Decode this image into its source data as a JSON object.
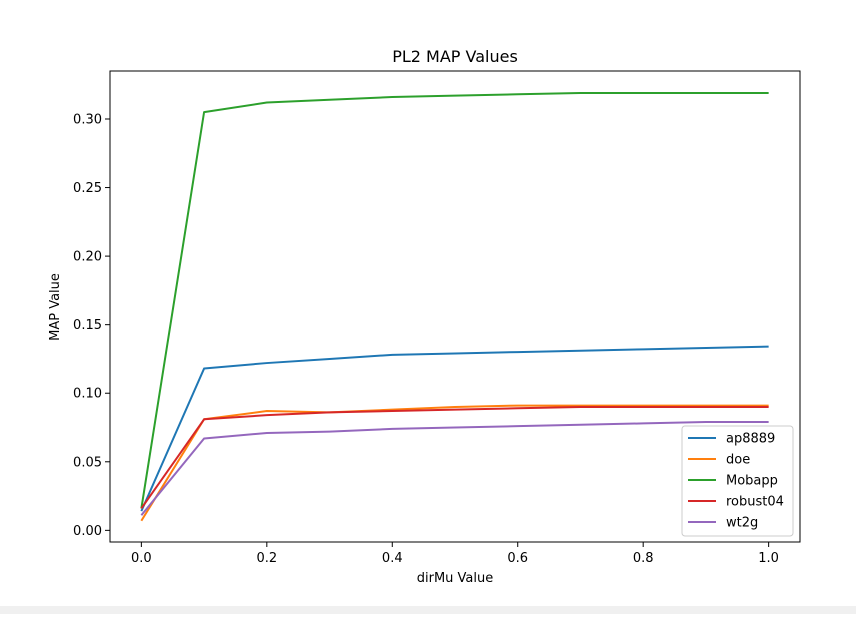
{
  "chart_data": {
    "type": "line",
    "title": "PL2 MAP Values",
    "xlabel": "dirMu Value",
    "ylabel": "MAP Value",
    "x": [
      0.0,
      0.1,
      0.2,
      0.3,
      0.4,
      0.5,
      0.6,
      0.7,
      0.8,
      0.9,
      1.0
    ],
    "xlim": [
      -0.05,
      1.05
    ],
    "ylim": [
      -0.0085,
      0.335
    ],
    "xticks": [
      0.0,
      0.2,
      0.4,
      0.6,
      0.8,
      1.0
    ],
    "xtick_labels": [
      "0.0",
      "0.2",
      "0.4",
      "0.6",
      "0.8",
      "1.0"
    ],
    "yticks": [
      0.0,
      0.05,
      0.1,
      0.15,
      0.2,
      0.25,
      0.3
    ],
    "ytick_labels": [
      "0.00",
      "0.05",
      "0.10",
      "0.15",
      "0.20",
      "0.25",
      "0.30"
    ],
    "grid": false,
    "legend_position": "lower-right",
    "series": [
      {
        "name": "ap8889",
        "color": "#1f77b4",
        "values": [
          0.014,
          0.118,
          0.122,
          0.125,
          0.128,
          0.129,
          0.13,
          0.131,
          0.132,
          0.133,
          0.134
        ]
      },
      {
        "name": "doe",
        "color": "#ff7f0e",
        "values": [
          0.007,
          0.081,
          0.087,
          0.086,
          0.088,
          0.09,
          0.091,
          0.091,
          0.091,
          0.091,
          0.091
        ]
      },
      {
        "name": "Mobapp",
        "color": "#2ca02c",
        "values": [
          0.016,
          0.305,
          0.312,
          0.314,
          0.316,
          0.317,
          0.318,
          0.319,
          0.319,
          0.319,
          0.319
        ]
      },
      {
        "name": "robust04",
        "color": "#d62728",
        "values": [
          0.016,
          0.081,
          0.084,
          0.086,
          0.087,
          0.088,
          0.089,
          0.09,
          0.09,
          0.09,
          0.09
        ]
      },
      {
        "name": "wt2g",
        "color": "#9467bd",
        "values": [
          0.011,
          0.067,
          0.071,
          0.072,
          0.074,
          0.075,
          0.076,
          0.077,
          0.078,
          0.079,
          0.079
        ]
      }
    ]
  }
}
